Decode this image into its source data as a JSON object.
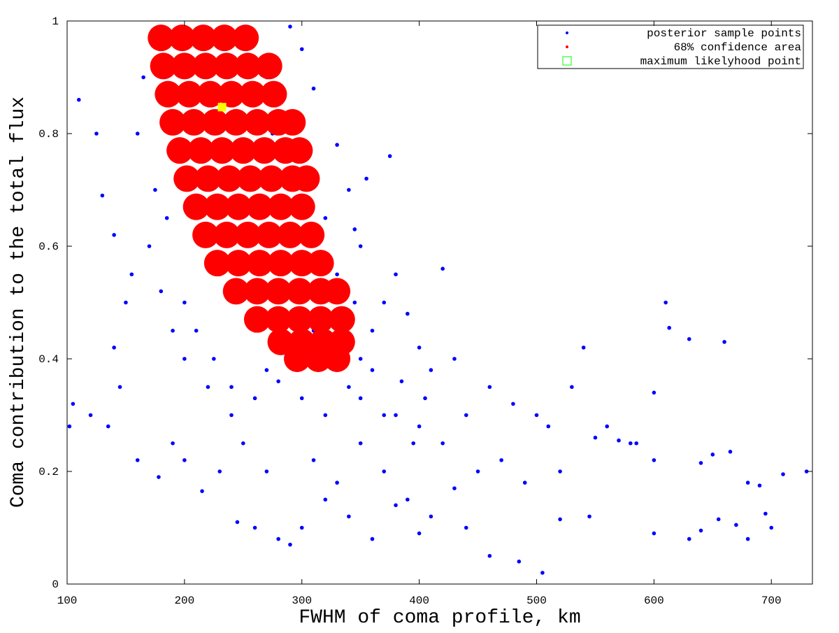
{
  "chart_data": {
    "type": "scatter",
    "xlabel": "FWHM of coma profile, km",
    "ylabel": "Coma contribution to the total flux",
    "xlim": [
      100,
      735
    ],
    "xticks": [
      100,
      200,
      300,
      400,
      500,
      600,
      700
    ],
    "ylim": [
      0,
      1
    ],
    "yticks": [
      0,
      0.2,
      0.4,
      0.6,
      0.8,
      1
    ],
    "legend": "upper right",
    "series": [
      {
        "name": "posterior sample points",
        "color": "#0000ff",
        "marker": "dot",
        "x": [
          180,
          165,
          160,
          175,
          185,
          170,
          150,
          140,
          120,
          105,
          102,
          110,
          125,
          130,
          140,
          155,
          200,
          210,
          225,
          240,
          260,
          280,
          300,
          320,
          340,
          350,
          360,
          370,
          380,
          390,
          400,
          410,
          420,
          350,
          340,
          330,
          310,
          300,
          290,
          270,
          275,
          320,
          330,
          345,
          360,
          380,
          400,
          420,
          440,
          460,
          480,
          500,
          430,
          450,
          470,
          490,
          510,
          520,
          540,
          550,
          560,
          580,
          600,
          610,
          613,
          630,
          660,
          665,
          650,
          640,
          600,
          600,
          630,
          640,
          655,
          670,
          680,
          690,
          695,
          700,
          710,
          730,
          680,
          505,
          485,
          460,
          440,
          400,
          380,
          360,
          340,
          320,
          300,
          290,
          280,
          260,
          245,
          230,
          215,
          200,
          190,
          178,
          160,
          145,
          135,
          250,
          270,
          310,
          330,
          350,
          370,
          390,
          410,
          430,
          240,
          220,
          200,
          190,
          180,
          260,
          230,
          330,
          350,
          370,
          385,
          405,
          395,
          375,
          355,
          345,
          310,
          290,
          270,
          530,
          545,
          520,
          570,
          585
        ],
        "y": [
          0.98,
          0.9,
          0.8,
          0.7,
          0.65,
          0.6,
          0.5,
          0.42,
          0.3,
          0.32,
          0.28,
          0.86,
          0.8,
          0.69,
          0.62,
          0.55,
          0.5,
          0.45,
          0.4,
          0.35,
          0.33,
          0.36,
          0.33,
          0.3,
          0.35,
          0.4,
          0.45,
          0.5,
          0.55,
          0.48,
          0.42,
          0.38,
          0.56,
          0.6,
          0.7,
          0.78,
          0.88,
          0.95,
          0.99,
          0.9,
          0.8,
          0.65,
          0.55,
          0.5,
          0.38,
          0.3,
          0.28,
          0.25,
          0.3,
          0.35,
          0.32,
          0.3,
          0.4,
          0.2,
          0.22,
          0.18,
          0.28,
          0.2,
          0.42,
          0.26,
          0.28,
          0.25,
          0.34,
          0.5,
          0.455,
          0.435,
          0.43,
          0.235,
          0.23,
          0.215,
          0.22,
          0.09,
          0.08,
          0.095,
          0.115,
          0.105,
          0.18,
          0.175,
          0.125,
          0.1,
          0.195,
          0.2,
          0.08,
          0.02,
          0.04,
          0.05,
          0.1,
          0.09,
          0.14,
          0.08,
          0.12,
          0.15,
          0.1,
          0.07,
          0.08,
          0.1,
          0.11,
          0.2,
          0.165,
          0.22,
          0.25,
          0.19,
          0.22,
          0.35,
          0.28,
          0.25,
          0.2,
          0.22,
          0.18,
          0.25,
          0.2,
          0.15,
          0.12,
          0.17,
          0.3,
          0.35,
          0.4,
          0.45,
          0.52,
          0.45,
          0.55,
          0.42,
          0.33,
          0.3,
          0.36,
          0.33,
          0.25,
          0.76,
          0.72,
          0.63,
          0.45,
          0.42,
          0.38,
          0.35,
          0.12,
          0.115,
          0.255,
          0.25
        ]
      },
      {
        "name": "68% confidence area",
        "color": "#ff0000",
        "marker": "blob",
        "x": [
          180,
          198,
          216,
          234,
          252,
          182,
          200,
          218,
          236,
          254,
          272,
          186,
          204,
          222,
          240,
          258,
          276,
          190,
          208,
          226,
          244,
          262,
          280,
          292,
          196,
          214,
          232,
          250,
          268,
          286,
          298,
          202,
          220,
          238,
          256,
          274,
          292,
          304,
          210,
          228,
          246,
          264,
          282,
          300,
          218,
          236,
          254,
          272,
          290,
          308,
          228,
          246,
          264,
          282,
          300,
          316,
          244,
          262,
          280,
          298,
          316,
          330,
          262,
          280,
          298,
          316,
          334,
          282,
          300,
          318,
          334,
          296,
          314,
          330
        ],
        "y": [
          0.97,
          0.97,
          0.97,
          0.97,
          0.97,
          0.92,
          0.92,
          0.92,
          0.92,
          0.92,
          0.92,
          0.87,
          0.87,
          0.87,
          0.87,
          0.87,
          0.87,
          0.82,
          0.82,
          0.82,
          0.82,
          0.82,
          0.82,
          0.82,
          0.77,
          0.77,
          0.77,
          0.77,
          0.77,
          0.77,
          0.77,
          0.72,
          0.72,
          0.72,
          0.72,
          0.72,
          0.72,
          0.72,
          0.67,
          0.67,
          0.67,
          0.67,
          0.67,
          0.67,
          0.62,
          0.62,
          0.62,
          0.62,
          0.62,
          0.62,
          0.57,
          0.57,
          0.57,
          0.57,
          0.57,
          0.57,
          0.52,
          0.52,
          0.52,
          0.52,
          0.52,
          0.52,
          0.47,
          0.47,
          0.47,
          0.47,
          0.47,
          0.43,
          0.43,
          0.43,
          0.43,
          0.4,
          0.4,
          0.4
        ]
      },
      {
        "name": "maximum likelyhood point",
        "color": "#ffff00",
        "legend_color": "#00ff00",
        "marker": "square",
        "x": [
          232
        ],
        "y": [
          0.847
        ]
      }
    ]
  }
}
